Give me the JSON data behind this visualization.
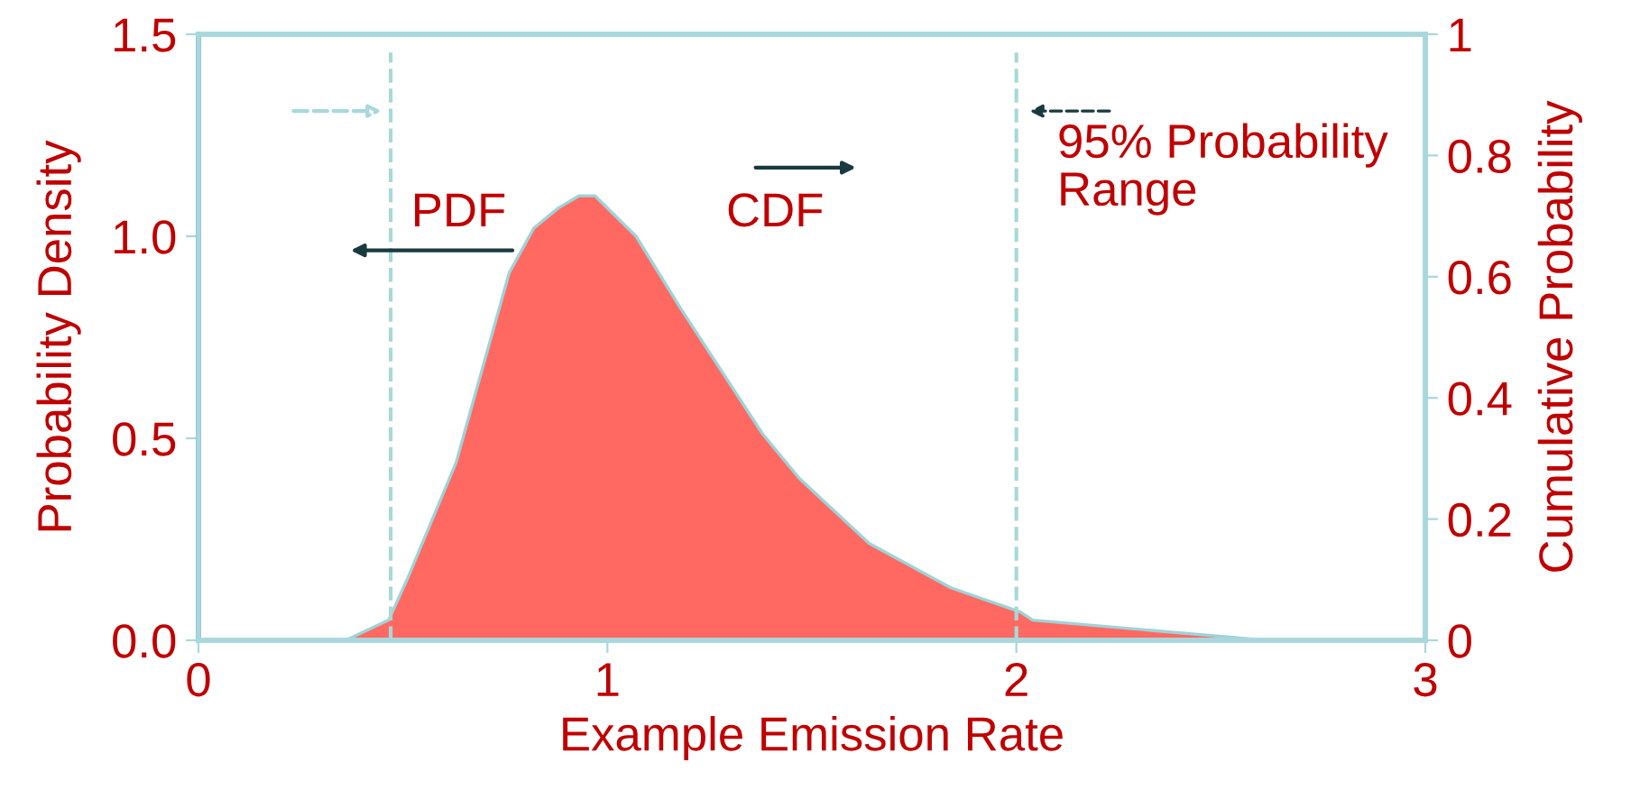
{
  "chart_data": {
    "type": "area",
    "xlabel": "Example Emission Rate",
    "ylabel": "Probability Density",
    "y2label": "Cumulative Probability",
    "x": [
      0,
      0.36,
      0.465,
      0.51,
      0.63,
      0.76,
      0.82,
      0.88,
      0.93,
      0.97,
      1.07,
      1.18,
      1.38,
      1.47,
      1.64,
      1.84,
      2.01,
      2.04,
      2.61,
      3
    ],
    "series": [
      {
        "color": "#ff6961",
        "values": [
          0,
          0,
          0.05,
          0.15,
          0.44,
          0.91,
          1.02,
          1.07,
          1.1,
          1.1,
          1.0,
          0.82,
          0.51,
          0.4,
          0.24,
          0.13,
          0.07,
          0.05,
          0,
          0
        ]
      }
    ],
    "xlim": [
      0,
      3
    ],
    "xticks": [
      0,
      1,
      2,
      3
    ],
    "ylim": [
      0,
      1.5
    ],
    "yticks": [
      {
        "value": 0,
        "label": "0.0"
      },
      {
        "value": 0.5,
        "label": "0.5"
      },
      {
        "value": 1,
        "label": "1.0"
      },
      1.5
    ],
    "y2lim": [
      0,
      1
    ],
    "y2ticks": [
      0,
      0.2,
      0.4,
      0.6,
      0.8,
      1
    ],
    "ref_lines": [
      {
        "axis": "x",
        "value": 0.47,
        "color": "#a8d8d8",
        "line_style": "dashed"
      },
      {
        "axis": "x",
        "value": 2.0,
        "color": "#a8d8d8",
        "line_style": "dashed"
      }
    ],
    "annotations": [
      "PDF",
      "CDF",
      "95% Probability\nRange"
    ],
    "grid": false
  }
}
